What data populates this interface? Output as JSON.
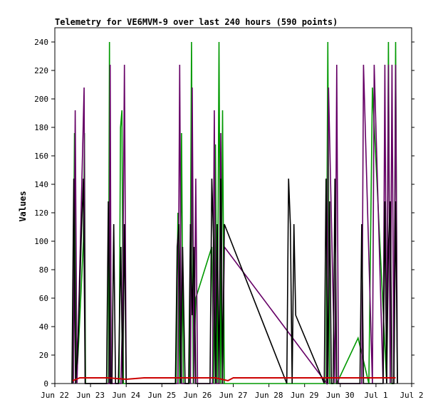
{
  "chart_data": {
    "type": "line",
    "title": "Telemetry for VE6MVM-9 over last 240 hours (590 points)",
    "xlabel": "",
    "ylabel": "Values",
    "xlim": [
      "Jun 22",
      "Jul 2"
    ],
    "ylim": [
      0,
      250
    ],
    "grid": false,
    "legend": "none",
    "x_ticks": [
      "Jun 22",
      "Jun 23",
      "Jun 24",
      "Jun 25",
      "Jun 26",
      "Jun 27",
      "Jun 28",
      "Jun 29",
      "Jun 30",
      "Jul 1",
      "Jul 2"
    ],
    "y_ticks": [
      0,
      20,
      40,
      60,
      80,
      100,
      120,
      140,
      160,
      180,
      200,
      220,
      240
    ],
    "series": [
      {
        "color": "#009900",
        "x": [
          22.5,
          22.55,
          22.6,
          22.65,
          22.8,
          22.83,
          22.86,
          23.5,
          23.53,
          23.56,
          23.8,
          23.84,
          23.88,
          23.92,
          23.96,
          24.0,
          25.4,
          25.45,
          25.5,
          25.55,
          25.6,
          25.78,
          25.83,
          25.88,
          25.95,
          26.4,
          26.45,
          26.5,
          26.55,
          26.6,
          26.65,
          26.7,
          26.75,
          26.8,
          29.6,
          29.65,
          29.7,
          29.9,
          30.5,
          30.8,
          30.9,
          31.3,
          31.35,
          31.4,
          31.5,
          31.55,
          31.6
        ],
        "y": [
          0,
          176,
          0,
          20,
          100,
          176,
          0,
          0,
          240,
          0,
          0,
          180,
          192,
          0,
          0,
          0,
          0,
          120,
          0,
          176,
          0,
          0,
          240,
          0,
          60,
          96,
          0,
          168,
          0,
          240,
          0,
          192,
          0,
          0,
          0,
          240,
          0,
          0,
          32,
          0,
          208,
          0,
          240,
          0,
          0,
          240,
          0
        ]
      },
      {
        "color": "#660066",
        "x": [
          22.52,
          22.57,
          22.62,
          22.82,
          22.85,
          23.52,
          23.55,
          23.58,
          23.85,
          23.9,
          23.95,
          24.0,
          25.45,
          25.5,
          25.55,
          25.8,
          25.85,
          25.9,
          25.95,
          26.0,
          26.42,
          26.47,
          26.52,
          26.6,
          26.65,
          26.7,
          26.75,
          29.62,
          29.67,
          29.85,
          29.9,
          29.95,
          30.6,
          30.65,
          30.9,
          30.95,
          31.2,
          31.25,
          31.3,
          31.35,
          31.4,
          31.45,
          31.5,
          31.55,
          31.6
        ],
        "y": [
          0,
          192,
          0,
          208,
          0,
          0,
          224,
          0,
          0,
          50,
          224,
          0,
          0,
          224,
          0,
          0,
          208,
          0,
          144,
          0,
          0,
          192,
          0,
          0,
          176,
          0,
          96,
          0,
          208,
          0,
          224,
          0,
          0,
          224,
          0,
          224,
          0,
          224,
          0,
          224,
          0,
          224,
          0,
          224,
          0
        ]
      },
      {
        "color": "#000000",
        "x": [
          22.48,
          22.53,
          22.58,
          22.65,
          22.75,
          22.8,
          22.85,
          23.45,
          23.5,
          23.55,
          23.6,
          23.65,
          23.7,
          23.78,
          23.85,
          23.9,
          23.95,
          24.0,
          25.38,
          25.43,
          25.48,
          25.53,
          25.58,
          25.65,
          25.75,
          25.8,
          25.85,
          25.9,
          25.95,
          26.35,
          26.4,
          26.45,
          26.5,
          26.55,
          26.6,
          26.65,
          26.7,
          26.75,
          28.5,
          28.55,
          28.6,
          28.65,
          28.7,
          28.75,
          29.55,
          29.6,
          29.65,
          29.7,
          29.75,
          29.8,
          29.85,
          29.9,
          29.95,
          30.55,
          30.6,
          30.65,
          30.7,
          31.2,
          31.25,
          31.3,
          31.35,
          31.4,
          31.45,
          31.5,
          31.55,
          31.6
        ],
        "y": [
          0,
          144,
          0,
          30,
          110,
          144,
          0,
          0,
          128,
          0,
          0,
          112,
          0,
          0,
          96,
          0,
          112,
          0,
          0,
          96,
          112,
          0,
          96,
          0,
          0,
          112,
          48,
          96,
          0,
          0,
          144,
          100,
          0,
          112,
          0,
          144,
          0,
          112,
          0,
          144,
          112,
          0,
          112,
          48,
          0,
          144,
          0,
          128,
          0,
          0,
          144,
          0,
          0,
          0,
          112,
          0,
          0,
          0,
          128,
          0,
          96,
          128,
          0,
          0,
          128,
          0
        ]
      },
      {
        "color": "#cc0000",
        "x": [
          22.5,
          22.7,
          23.5,
          24.0,
          24.5,
          25.0,
          25.5,
          26.0,
          26.5,
          26.85,
          27.0,
          28.0,
          29.0,
          30.0,
          31.0,
          31.55
        ],
        "y": [
          2,
          4,
          4,
          3,
          4,
          4,
          4,
          4,
          4,
          2,
          4,
          4,
          4,
          4,
          4,
          4
        ]
      }
    ]
  }
}
